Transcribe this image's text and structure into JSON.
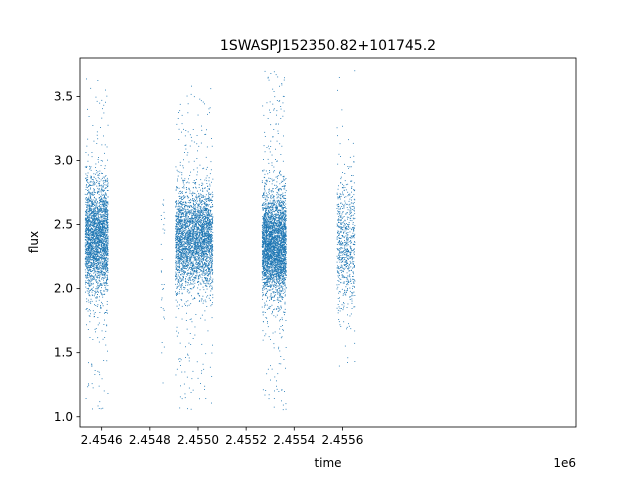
{
  "chart_data": {
    "type": "scatter",
    "title": "1SWASPJ152350.82+101745.2",
    "xlabel": "time",
    "ylabel": "flux",
    "x_offset_label": "1e6",
    "xlim": [
      2454510,
      2456570
    ],
    "ylim": [
      0.92,
      3.8
    ],
    "xticks": [
      2454600,
      2454800,
      2455000,
      2455200,
      2455400,
      2455600
    ],
    "xtick_labels": [
      "2.4546",
      "2.4548",
      "2.4550",
      "2.4552",
      "2.4554",
      "2.4556"
    ],
    "yticks": [
      1.0,
      1.5,
      2.0,
      2.5,
      3.0,
      3.5
    ],
    "ytick_labels": [
      "1.0",
      "1.5",
      "2.0",
      "2.5",
      "3.0",
      "3.5"
    ],
    "grid": false,
    "marker_color": "#1f77b4",
    "series": [
      {
        "observing_seasons": [
          {
            "x_range": [
              2454530,
              2454625
            ],
            "flux_center": 2.4,
            "flux_spread": 0.22,
            "flux_min": 1.05,
            "flux_max": 3.65,
            "n_points": 2600
          },
          {
            "x_range": [
              2454845,
              2454860
            ],
            "flux_center": 2.1,
            "flux_spread": 0.5,
            "flux_min": 1.1,
            "flux_max": 2.7,
            "n_points": 30
          },
          {
            "x_range": [
              2454905,
              2455060
            ],
            "flux_center": 2.4,
            "flux_spread": 0.2,
            "flux_min": 1.05,
            "flux_max": 3.6,
            "n_points": 3200
          },
          {
            "x_range": [
              2455265,
              2455365
            ],
            "flux_center": 2.35,
            "flux_spread": 0.2,
            "flux_min": 1.05,
            "flux_max": 3.7,
            "n_points": 3400
          },
          {
            "x_range": [
              2455575,
              2455650
            ],
            "flux_center": 2.35,
            "flux_spread": 0.25,
            "flux_min": 1.1,
            "flux_max": 3.72,
            "n_points": 700
          }
        ]
      }
    ]
  }
}
